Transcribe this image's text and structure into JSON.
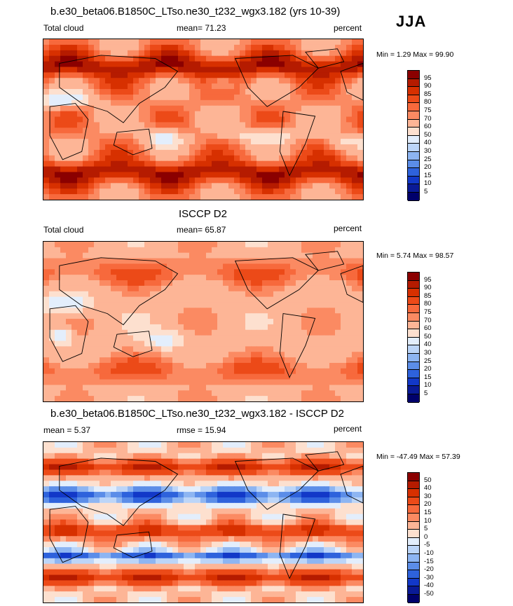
{
  "season": "JJA",
  "panels": [
    {
      "title": "b.e30_beta06.B1850C_LTso.ne30_t232_wgx3.182 (yrs 10-39)",
      "left_label": "Total cloud",
      "center_label": "mean=  71.23",
      "right_label": "percent",
      "minmax": "Min =   1.29 Max =  99.90",
      "colorbar": {
        "levels": [
          "95",
          "90",
          "85",
          "80",
          "75",
          "70",
          "60",
          "50",
          "40",
          "30",
          "25",
          "20",
          "15",
          "10",
          "5"
        ],
        "colors": [
          "#8b0000",
          "#b51b00",
          "#d73000",
          "#ec4a18",
          "#f7693c",
          "#fb8a62",
          "#fdb596",
          "#fde0cf",
          "#e3eefc",
          "#bcd5f8",
          "#8db5f2",
          "#5b8de8",
          "#2e62dc",
          "#1238c8",
          "#0a1a96",
          "#00006b"
        ]
      },
      "field": "model"
    },
    {
      "title": "ISCCP D2",
      "left_label": "Total cloud",
      "center_label": "mean=  65.87",
      "right_label": "percent",
      "minmax": "Min =   5.74 Max =  98.57",
      "colorbar": {
        "levels": [
          "95",
          "90",
          "85",
          "80",
          "75",
          "70",
          "60",
          "50",
          "40",
          "30",
          "25",
          "20",
          "15",
          "10",
          "5"
        ],
        "colors": [
          "#8b0000",
          "#b51b00",
          "#d73000",
          "#ec4a18",
          "#f7693c",
          "#fb8a62",
          "#fdb596",
          "#fde0cf",
          "#e3eefc",
          "#bcd5f8",
          "#8db5f2",
          "#5b8de8",
          "#2e62dc",
          "#1238c8",
          "#0a1a96",
          "#00006b"
        ]
      },
      "field": "obs"
    },
    {
      "title": "b.e30_beta06.B1850C_LTso.ne30_t232_wgx3.182 - ISCCP D2",
      "left_label": "mean =   5.37",
      "center_label": "rmse =  15.94",
      "right_label": "percent",
      "minmax": "Min = -47.49 Max =  57.39",
      "colorbar": {
        "levels": [
          "50",
          "40",
          "30",
          "20",
          "15",
          "10",
          "5",
          "0",
          "-5",
          "-10",
          "-15",
          "-20",
          "-30",
          "-40",
          "-50"
        ],
        "colors": [
          "#8b0000",
          "#b51b00",
          "#d73000",
          "#ec4a18",
          "#f7693c",
          "#fb8a62",
          "#fdb596",
          "#fde0cf",
          "#e3eefc",
          "#bcd5f8",
          "#8db5f2",
          "#5b8de8",
          "#2e62dc",
          "#1238c8",
          "#0a1a96",
          "#00006b"
        ]
      },
      "field": "diff"
    }
  ]
}
